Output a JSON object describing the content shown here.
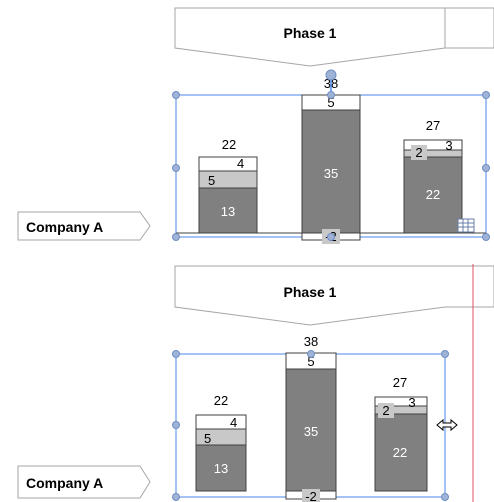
{
  "panels": [
    {
      "phase_label": "Phase 1",
      "row_label": "Company A",
      "chart_data": {
        "type": "bar",
        "stacked": true,
        "columns": [
          {
            "total": "22",
            "segments": [
              "13",
              "5",
              "4"
            ]
          },
          {
            "total": "38",
            "segments": [
              "35",
              "5"
            ],
            "negative": "-2"
          },
          {
            "total": "27",
            "segments": [
              "22",
              "2",
              "3"
            ]
          }
        ],
        "colors": {
          "dark": "#808080",
          "mid": "#c8c8c8",
          "light": "#ffffff"
        }
      }
    },
    {
      "phase_label": "Phase 1",
      "row_label": "Company A",
      "chart_data": {
        "type": "bar",
        "stacked": true,
        "columns": [
          {
            "total": "22",
            "segments": [
              "13",
              "5",
              "4"
            ]
          },
          {
            "total": "38",
            "segments": [
              "35",
              "5"
            ],
            "negative": "-2"
          },
          {
            "total": "27",
            "segments": [
              "22",
              "2",
              "3"
            ]
          }
        ],
        "colors": {
          "dark": "#808080",
          "mid": "#c8c8c8",
          "light": "#ffffff"
        }
      }
    }
  ],
  "selection_color": "#4a86e8",
  "cursor_line_color": "#e05060",
  "icons": {
    "datasheet": "table-icon",
    "resize_cursor": "resize-horizontal-icon",
    "rotate_handle": "rotate-handle-icon"
  }
}
